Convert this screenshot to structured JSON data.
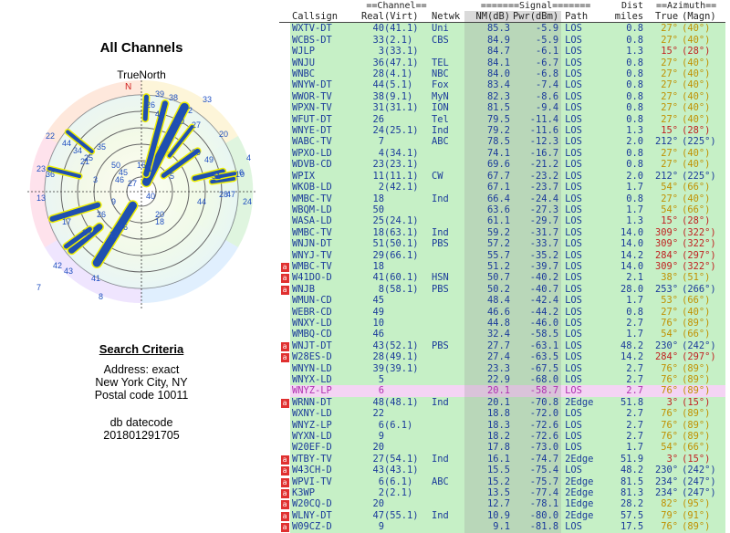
{
  "left": {
    "title": "All Channels",
    "north_label": "TrueNorth",
    "compass_n": "N",
    "criteria": {
      "heading": "Search Criteria",
      "address": "Address: exact",
      "city": "New York City, NY",
      "postal": "Postal code 10011",
      "db_label": "db datecode",
      "db_value": "201801291705"
    }
  },
  "table": {
    "group_headers": {
      "channel": "==Channel==",
      "signal": "=======Signal=======",
      "dist": "Dist",
      "azimuth": "==Azimuth=="
    },
    "columns": {
      "callsign": "Callsign",
      "real": "Real",
      "virt": "(Virt)",
      "netwk": "Netwk",
      "nm": "NM(dB)",
      "pwr": "Pwr(dBm)",
      "path": "Path",
      "dist": "miles",
      "true": "True",
      "magn": "(Magn)"
    },
    "rows": [
      {
        "call": "WXTV-DT",
        "real": "40",
        "virt": "(41.1)",
        "net": "Uni",
        "nm": "85.3",
        "pwr": "-5.9",
        "path": "LOS",
        "dist": "0.8",
        "true": "27°",
        "mag": "(40°)",
        "color": "#2a8a2a",
        "bg": "#c6f0c6",
        "mark": ""
      },
      {
        "call": "WCBS-DT",
        "real": "33",
        "virt": "(2.1)",
        "net": "CBS",
        "nm": "84.9",
        "pwr": "-5.9",
        "path": "LOS",
        "dist": "0.8",
        "true": "27°",
        "mag": "(40°)",
        "color": "#2a8a2a",
        "bg": "#c6f0c6",
        "mark": ""
      },
      {
        "call": "WJLP",
        "real": "3",
        "virt": "(33.1)",
        "net": "",
        "nm": "84.7",
        "pwr": "-6.1",
        "path": "LOS",
        "dist": "1.3",
        "true": "15°",
        "mag": "(28°)",
        "color": "#2a8a2a",
        "bg": "#c6f0c6",
        "mark": ""
      },
      {
        "call": "WNJU",
        "real": "36",
        "virt": "(47.1)",
        "net": "TEL",
        "nm": "84.1",
        "pwr": "-6.7",
        "path": "LOS",
        "dist": "0.8",
        "true": "27°",
        "mag": "(40°)",
        "color": "#2a8a2a",
        "bg": "#c6f0c6",
        "mark": ""
      },
      {
        "call": "WNBC",
        "real": "28",
        "virt": "(4.1)",
        "net": "NBC",
        "nm": "84.0",
        "pwr": "-6.8",
        "path": "LOS",
        "dist": "0.8",
        "true": "27°",
        "mag": "(40°)",
        "color": "#2a8a2a",
        "bg": "#c6f0c6",
        "mark": ""
      },
      {
        "call": "WNYW-DT",
        "real": "44",
        "virt": "(5.1)",
        "net": "Fox",
        "nm": "83.4",
        "pwr": "-7.4",
        "path": "LOS",
        "dist": "0.8",
        "true": "27°",
        "mag": "(40°)",
        "color": "#2a8a2a",
        "bg": "#c6f0c6",
        "mark": ""
      },
      {
        "call": "WWOR-TV",
        "real": "38",
        "virt": "(9.1)",
        "net": "MyN",
        "nm": "82.3",
        "pwr": "-8.6",
        "path": "LOS",
        "dist": "0.8",
        "true": "27°",
        "mag": "(40°)",
        "color": "#2a8a2a",
        "bg": "#c6f0c6",
        "mark": ""
      },
      {
        "call": "WPXN-TV",
        "real": "31",
        "virt": "(31.1)",
        "net": "ION",
        "nm": "81.5",
        "pwr": "-9.4",
        "path": "LOS",
        "dist": "0.8",
        "true": "27°",
        "mag": "(40°)",
        "color": "#2a8a2a",
        "bg": "#c6f0c6",
        "mark": ""
      },
      {
        "call": "WFUT-DT",
        "real": "26",
        "virt": "",
        "net": "Tel",
        "nm": "79.5",
        "pwr": "-11.4",
        "path": "LOS",
        "dist": "0.8",
        "true": "27°",
        "mag": "(40°)",
        "color": "#2a8a2a",
        "bg": "#c6f0c6",
        "mark": ""
      },
      {
        "call": "WNYE-DT",
        "real": "24",
        "virt": "(25.1)",
        "net": "Ind",
        "nm": "79.2",
        "pwr": "-11.6",
        "path": "LOS",
        "dist": "1.3",
        "true": "15°",
        "mag": "(28°)",
        "color": "#2a8a2a",
        "bg": "#c6f0c6",
        "mark": ""
      },
      {
        "call": "WABC-TV",
        "real": "7",
        "virt": "",
        "net": "ABC",
        "nm": "78.5",
        "pwr": "-12.3",
        "path": "LOS",
        "dist": "2.0",
        "true": "212°",
        "mag": "(225°)",
        "color": "#2a8a2a",
        "bg": "#c6f0c6",
        "mark": ""
      },
      {
        "call": "WPXO-LD",
        "real": "4",
        "virt": "(34.1)",
        "net": "",
        "nm": "74.1",
        "pwr": "-16.7",
        "path": "LOS",
        "dist": "0.8",
        "true": "27°",
        "mag": "(40°)",
        "color": "#2a8a2a",
        "bg": "#c6f0c6",
        "mark": ""
      },
      {
        "call": "WDVB-CD",
        "real": "23",
        "virt": "(23.1)",
        "net": "",
        "nm": "69.6",
        "pwr": "-21.2",
        "path": "LOS",
        "dist": "0.8",
        "true": "27°",
        "mag": "(40°)",
        "color": "#2a8a2a",
        "bg": "#c6f0c6",
        "mark": ""
      },
      {
        "call": "WPIX",
        "real": "11",
        "virt": "(11.1)",
        "net": "CW",
        "nm": "67.7",
        "pwr": "-23.2",
        "path": "LOS",
        "dist": "2.0",
        "true": "212°",
        "mag": "(225°)",
        "color": "#2a8a2a",
        "bg": "#c6f0c6",
        "mark": ""
      },
      {
        "call": "WKOB-LD",
        "real": "2",
        "virt": "(42.1)",
        "net": "",
        "nm": "67.1",
        "pwr": "-23.7",
        "path": "LOS",
        "dist": "1.7",
        "true": "54°",
        "mag": "(66°)",
        "color": "#2a8a2a",
        "bg": "#c6f0c6",
        "mark": ""
      },
      {
        "call": "WMBC-TV",
        "real": "18",
        "virt": "",
        "net": "Ind",
        "nm": "66.4",
        "pwr": "-24.4",
        "path": "LOS",
        "dist": "0.8",
        "true": "27°",
        "mag": "(40°)",
        "color": "#2a8a2a",
        "bg": "#c6f0c6",
        "mark": ""
      },
      {
        "call": "WBQM-LD",
        "real": "50",
        "virt": "",
        "net": "",
        "nm": "63.6",
        "pwr": "-27.3",
        "path": "LOS",
        "dist": "1.7",
        "true": "54°",
        "mag": "(66°)",
        "color": "#2a8a2a",
        "bg": "#c6f0c6",
        "mark": ""
      },
      {
        "call": "WASA-LD",
        "real": "25",
        "virt": "(24.1)",
        "net": "",
        "nm": "61.1",
        "pwr": "-29.7",
        "path": "LOS",
        "dist": "1.3",
        "true": "15°",
        "mag": "(28°)",
        "color": "#2a8a2a",
        "bg": "#c6f0c6",
        "mark": ""
      },
      {
        "call": "WMBC-TV",
        "real": "18",
        "virt": "(63.1)",
        "net": "Ind",
        "nm": "59.2",
        "pwr": "-31.7",
        "path": "LOS",
        "dist": "14.0",
        "true": "309°",
        "mag": "(322°)",
        "color": "#2a8a2a",
        "bg": "#c6f0c6",
        "mark": ""
      },
      {
        "call": "WNJN-DT",
        "real": "51",
        "virt": "(50.1)",
        "net": "PBS",
        "nm": "57.2",
        "pwr": "-33.7",
        "path": "LOS",
        "dist": "14.0",
        "true": "309°",
        "mag": "(322°)",
        "color": "#2a8a2a",
        "bg": "#c6f0c6",
        "mark": ""
      },
      {
        "call": "WNYJ-TV",
        "real": "29",
        "virt": "(66.1)",
        "net": "",
        "nm": "55.7",
        "pwr": "-35.2",
        "path": "LOS",
        "dist": "14.2",
        "true": "284°",
        "mag": "(297°)",
        "color": "#2a8a2a",
        "bg": "#c6f0c6",
        "mark": ""
      },
      {
        "call": "WMBC-TV",
        "real": "18",
        "virt": "",
        "net": "",
        "nm": "51.2",
        "pwr": "-39.7",
        "path": "LOS",
        "dist": "14.0",
        "true": "309°",
        "mag": "(322°)",
        "color": "#2a8a2a",
        "bg": "#c6f0c6",
        "mark": "a"
      },
      {
        "call": "W41DO-D",
        "real": "41",
        "virt": "(60.1)",
        "net": "HSN",
        "nm": "50.7",
        "pwr": "-40.2",
        "path": "LOS",
        "dist": "2.1",
        "true": "38°",
        "mag": "(51°)",
        "color": "#2a8a2a",
        "bg": "#c6f0c6",
        "mark": "a"
      },
      {
        "call": "WNJB",
        "real": "8",
        "virt": "(58.1)",
        "net": "PBS",
        "nm": "50.2",
        "pwr": "-40.7",
        "path": "LOS",
        "dist": "28.0",
        "true": "253°",
        "mag": "(266°)",
        "color": "#2a8a2a",
        "bg": "#c6f0c6",
        "mark": "a"
      },
      {
        "call": "WMUN-CD",
        "real": "45",
        "virt": "",
        "net": "",
        "nm": "48.4",
        "pwr": "-42.4",
        "path": "LOS",
        "dist": "1.7",
        "true": "53°",
        "mag": "(66°)",
        "color": "#2a8a2a",
        "bg": "#c6f0c6",
        "mark": ""
      },
      {
        "call": "WEBR-CD",
        "real": "49",
        "virt": "",
        "net": "",
        "nm": "46.6",
        "pwr": "-44.2",
        "path": "LOS",
        "dist": "0.8",
        "true": "27°",
        "mag": "(40°)",
        "color": "#2a8a2a",
        "bg": "#c6f0c6",
        "mark": ""
      },
      {
        "call": "WNXY-LD",
        "real": "10",
        "virt": "",
        "net": "",
        "nm": "44.8",
        "pwr": "-46.0",
        "path": "LOS",
        "dist": "2.7",
        "true": "76°",
        "mag": "(89°)",
        "color": "#2a8a2a",
        "bg": "#c6f0c6",
        "mark": ""
      },
      {
        "call": "WMBQ-CD",
        "real": "46",
        "virt": "",
        "net": "",
        "nm": "32.4",
        "pwr": "-58.5",
        "path": "LOS",
        "dist": "1.7",
        "true": "54°",
        "mag": "(66°)",
        "color": "#2a8a2a",
        "bg": "#c6f0c6",
        "mark": ""
      },
      {
        "call": "WNJT-DT",
        "real": "43",
        "virt": "(52.1)",
        "net": "PBS",
        "nm": "27.7",
        "pwr": "-63.1",
        "path": "LOS",
        "dist": "48.2",
        "true": "230°",
        "mag": "(242°)",
        "color": "#2a8a2a",
        "bg": "#c6f0c6",
        "mark": "a"
      },
      {
        "call": "W28ES-D",
        "real": "28",
        "virt": "(49.1)",
        "net": "",
        "nm": "27.4",
        "pwr": "-63.5",
        "path": "LOS",
        "dist": "14.2",
        "true": "284°",
        "mag": "(297°)",
        "color": "#2a8a2a",
        "bg": "#c6f0c6",
        "mark": "a"
      },
      {
        "call": "WNYN-LD",
        "real": "39",
        "virt": "(39.1)",
        "net": "",
        "nm": "23.3",
        "pwr": "-67.5",
        "path": "LOS",
        "dist": "2.7",
        "true": "76°",
        "mag": "(89°)",
        "color": "#2a8a2a",
        "bg": "#c6f0c6",
        "mark": ""
      },
      {
        "call": "WNYX-LD",
        "real": "5",
        "virt": "",
        "net": "",
        "nm": "22.9",
        "pwr": "-68.0",
        "path": "LOS",
        "dist": "2.7",
        "true": "76°",
        "mag": "(89°)",
        "color": "#2a8a2a",
        "bg": "#c6f0c6",
        "mark": ""
      },
      {
        "call": "WNYZ-LP",
        "real": "6",
        "virt": "",
        "net": "",
        "nm": "20.1",
        "pwr": "-58.7",
        "path": "LOS",
        "dist": "2.7",
        "true": "76°",
        "mag": "(89°)",
        "color": "#b030b0",
        "bg": "#f4d4f4",
        "mark": ""
      },
      {
        "call": "WRNN-DT",
        "real": "48",
        "virt": "(48.1)",
        "net": "Ind",
        "nm": "20.1",
        "pwr": "-70.8",
        "path": "2Edge",
        "dist": "51.8",
        "true": "3°",
        "mag": "(15°)",
        "color": "#2a8a2a",
        "bg": "#c6f0c6",
        "mark": "a"
      },
      {
        "call": "WXNY-LD",
        "real": "22",
        "virt": "",
        "net": "",
        "nm": "18.8",
        "pwr": "-72.0",
        "path": "LOS",
        "dist": "2.7",
        "true": "76°",
        "mag": "(89°)",
        "color": "#2a8a2a",
        "bg": "#c6f0c6",
        "mark": ""
      },
      {
        "call": "WNYZ-LP",
        "real": "6",
        "virt": "(6.1)",
        "net": "",
        "nm": "18.3",
        "pwr": "-72.6",
        "path": "LOS",
        "dist": "2.7",
        "true": "76°",
        "mag": "(89°)",
        "color": "#2a8a2a",
        "bg": "#c6f0c6",
        "mark": ""
      },
      {
        "call": "WYXN-LD",
        "real": "9",
        "virt": "",
        "net": "",
        "nm": "18.2",
        "pwr": "-72.6",
        "path": "LOS",
        "dist": "2.7",
        "true": "76°",
        "mag": "(89°)",
        "color": "#2a8a2a",
        "bg": "#c6f0c6",
        "mark": ""
      },
      {
        "call": "W20EF-D",
        "real": "20",
        "virt": "",
        "net": "",
        "nm": "17.8",
        "pwr": "-73.0",
        "path": "LOS",
        "dist": "1.7",
        "true": "54°",
        "mag": "(66°)",
        "color": "#2a8a2a",
        "bg": "#c6f0c6",
        "mark": ""
      },
      {
        "call": "WTBY-TV",
        "real": "27",
        "virt": "(54.1)",
        "net": "Ind",
        "nm": "16.1",
        "pwr": "-74.7",
        "path": "2Edge",
        "dist": "51.9",
        "true": "3°",
        "mag": "(15°)",
        "color": "#2a8a2a",
        "bg": "#c6f0c6",
        "mark": "a"
      },
      {
        "call": "W43CH-D",
        "real": "43",
        "virt": "(43.1)",
        "net": "",
        "nm": "15.5",
        "pwr": "-75.4",
        "path": "LOS",
        "dist": "48.2",
        "true": "230°",
        "mag": "(242°)",
        "color": "#2a8a2a",
        "bg": "#c6f0c6",
        "mark": "a"
      },
      {
        "call": "WPVI-TV",
        "real": "6",
        "virt": "(6.1)",
        "net": "ABC",
        "nm": "15.2",
        "pwr": "-75.7",
        "path": "2Edge",
        "dist": "81.5",
        "true": "234°",
        "mag": "(247°)",
        "color": "#2a8a2a",
        "bg": "#c6f0c6",
        "mark": "a"
      },
      {
        "call": "K3WP",
        "real": "2",
        "virt": "(2.1)",
        "net": "",
        "nm": "13.5",
        "pwr": "-77.4",
        "path": "2Edge",
        "dist": "81.3",
        "true": "234°",
        "mag": "(247°)",
        "color": "#2a8a2a",
        "bg": "#c6f0c6",
        "mark": "a"
      },
      {
        "call": "W20CQ-D",
        "real": "20",
        "virt": "",
        "net": "",
        "nm": "12.7",
        "pwr": "-78.1",
        "path": "1Edge",
        "dist": "28.2",
        "true": "82°",
        "mag": "(95°)",
        "color": "#2a8a2a",
        "bg": "#c6f0c6",
        "mark": "a"
      },
      {
        "call": "WLNY-DT",
        "real": "47",
        "virt": "(55.1)",
        "net": "Ind",
        "nm": "10.9",
        "pwr": "-80.0",
        "path": "2Edge",
        "dist": "57.5",
        "true": "79°",
        "mag": "(91°)",
        "color": "#2a8a2a",
        "bg": "#c6f0c6",
        "mark": "a"
      },
      {
        "call": "W09CZ-D",
        "real": "9",
        "virt": "",
        "net": "",
        "nm": "9.1",
        "pwr": "-81.8",
        "path": "LOS",
        "dist": "17.5",
        "true": "76°",
        "mag": "(89°)",
        "color": "#2a8a2a",
        "bg": "#c6f0c6",
        "mark": "a"
      }
    ],
    "azimuth_colors": {
      "warm": "#c02020",
      "amber": "#c09000",
      "blue": "#1a3a9a"
    }
  },
  "polar_labels": [
    "39",
    "38",
    "26",
    "48",
    "30",
    "27",
    "20",
    "49",
    "31",
    "47",
    "22",
    "44",
    "34",
    "25",
    "35",
    "33",
    "2",
    "10",
    "50",
    "45",
    "46",
    "44",
    "28",
    "24",
    "23",
    "36",
    "21",
    "3",
    "4",
    "6",
    "27",
    "16",
    "11",
    "13",
    "17",
    "29",
    "26",
    "9",
    "42",
    "43",
    "41",
    "8",
    "12",
    "7",
    "46",
    "40",
    "20",
    "18",
    "39",
    "5"
  ]
}
